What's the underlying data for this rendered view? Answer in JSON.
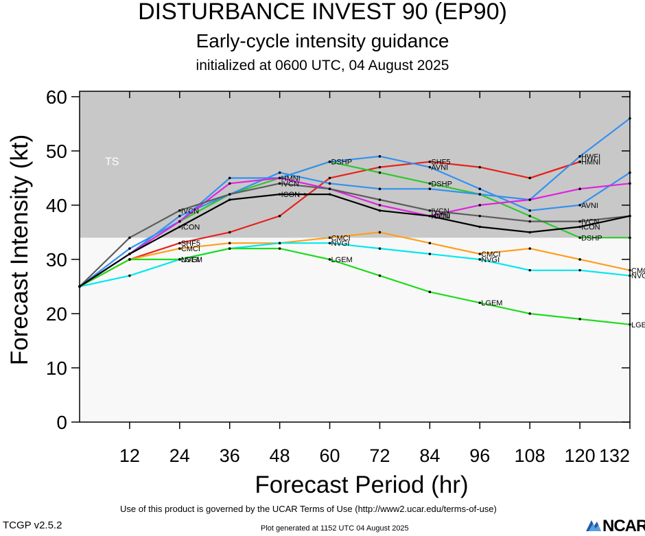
{
  "header": {
    "title": "DISTURBANCE INVEST 90 (EP90)",
    "subtitle": "Early-cycle intensity guidance",
    "init": "initialized at 0600 UTC, 04 August 2025"
  },
  "footer": {
    "terms": "Use of this product is governed by the UCAR Terms of Use (http://www2.ucar.edu/terms-of-use)",
    "version": "TCGP v2.5.2",
    "generated": "Plot generated at 1152 UTC   04 August 2025",
    "logo": "NCAR"
  },
  "colors": {
    "ts_band": "#c8c8c8",
    "below_band": "#f8f8f8"
  },
  "chart_data": {
    "type": "line",
    "xlabel": "Forecast Period (hr)",
    "ylabel": "Forecast Intensity (kt)",
    "xlim": [
      0,
      132
    ],
    "ylim": [
      0,
      61
    ],
    "xticks": [
      12,
      24,
      36,
      48,
      60,
      72,
      84,
      96,
      108,
      120,
      132
    ],
    "yticks": [
      0,
      10,
      20,
      30,
      40,
      50,
      60
    ],
    "band": {
      "label": "TS",
      "from": 34,
      "to": 61
    },
    "series": [
      {
        "name": "SHF5",
        "color": "#e8211c",
        "labels_at": [
          24,
          84
        ],
        "points": [
          [
            0,
            25
          ],
          [
            12,
            30
          ],
          [
            24,
            33
          ],
          [
            36,
            35
          ],
          [
            48,
            38
          ],
          [
            60,
            45
          ],
          [
            72,
            47
          ],
          [
            84,
            48
          ],
          [
            96,
            47
          ],
          [
            108,
            45
          ],
          [
            120,
            48
          ]
        ]
      },
      {
        "name": "HMNI",
        "color": "#e8211c",
        "labels_at": [
          120
        ],
        "points": [
          [
            108,
            45
          ],
          [
            120,
            48
          ]
        ]
      },
      {
        "name": "CMCI",
        "color": "#ff9f1a",
        "labels_at": [
          24,
          60,
          96,
          132
        ],
        "points": [
          [
            0,
            25
          ],
          [
            12,
            30
          ],
          [
            24,
            32
          ],
          [
            36,
            33
          ],
          [
            48,
            33
          ],
          [
            60,
            34
          ],
          [
            72,
            35
          ],
          [
            84,
            33
          ],
          [
            96,
            31
          ],
          [
            108,
            32
          ],
          [
            120,
            30
          ],
          [
            132,
            28
          ]
        ]
      },
      {
        "name": "NVGI",
        "color": "#00e8ee",
        "labels_at": [
          24,
          60,
          96,
          132
        ],
        "points": [
          [
            0,
            25
          ],
          [
            12,
            27
          ],
          [
            24,
            30
          ],
          [
            36,
            32
          ],
          [
            48,
            33
          ],
          [
            60,
            33
          ],
          [
            72,
            32
          ],
          [
            84,
            31
          ],
          [
            96,
            30
          ],
          [
            108,
            28
          ],
          [
            120,
            28
          ],
          [
            132,
            27
          ]
        ]
      },
      {
        "name": "LGEM",
        "color": "#1edc1e",
        "labels_at": [
          24,
          60,
          96,
          132
        ],
        "points": [
          [
            0,
            25
          ],
          [
            12,
            30
          ],
          [
            24,
            30
          ],
          [
            36,
            32
          ],
          [
            48,
            32
          ],
          [
            60,
            30
          ],
          [
            72,
            27
          ],
          [
            84,
            24
          ],
          [
            96,
            22
          ],
          [
            108,
            20
          ],
          [
            120,
            19
          ],
          [
            132,
            18
          ]
        ]
      },
      {
        "name": "DSHP",
        "color": "#2cc82c",
        "labels_at": [
          60,
          84,
          120
        ],
        "points": [
          [
            0,
            25
          ],
          [
            12,
            31
          ],
          [
            24,
            37
          ],
          [
            36,
            42
          ],
          [
            48,
            45
          ],
          [
            60,
            48
          ],
          [
            72,
            46
          ],
          [
            84,
            44
          ],
          [
            96,
            42
          ],
          [
            108,
            38
          ],
          [
            120,
            34
          ],
          [
            132,
            34
          ]
        ]
      },
      {
        "name": "AVNI",
        "color": "#3391f0",
        "labels_at": [
          84,
          120
        ],
        "points": [
          [
            0,
            25
          ],
          [
            12,
            32
          ],
          [
            24,
            37
          ],
          [
            36,
            45
          ],
          [
            48,
            45
          ],
          [
            60,
            48
          ],
          [
            72,
            49
          ],
          [
            84,
            47
          ],
          [
            96,
            43
          ],
          [
            108,
            39
          ],
          [
            120,
            40
          ],
          [
            132,
            46
          ]
        ]
      },
      {
        "name": "HWFI",
        "color": "#3391f0",
        "labels_at": [
          120
        ],
        "points": [
          [
            0,
            25
          ],
          [
            12,
            31
          ],
          [
            24,
            38
          ],
          [
            36,
            42
          ],
          [
            48,
            46
          ],
          [
            60,
            44
          ],
          [
            72,
            43
          ],
          [
            84,
            43
          ],
          [
            96,
            42
          ],
          [
            108,
            41
          ],
          [
            120,
            49
          ],
          [
            132,
            56
          ]
        ]
      },
      {
        "name": "HMNI",
        "color": "#e021e0",
        "labels_at": [
          48,
          84
        ],
        "points": [
          [
            0,
            25
          ],
          [
            12,
            31
          ],
          [
            24,
            37
          ],
          [
            36,
            44
          ],
          [
            48,
            45
          ],
          [
            60,
            43
          ],
          [
            72,
            40
          ],
          [
            84,
            38
          ],
          [
            96,
            40
          ],
          [
            108,
            41
          ],
          [
            120,
            43
          ],
          [
            132,
            44
          ]
        ]
      },
      {
        "name": "IVCN",
        "color": "#5c5c5c",
        "labels_at": [
          24,
          48,
          84,
          120
        ],
        "points": [
          [
            0,
            25
          ],
          [
            12,
            34
          ],
          [
            24,
            39
          ],
          [
            36,
            42
          ],
          [
            48,
            44
          ],
          [
            60,
            43
          ],
          [
            72,
            41
          ],
          [
            84,
            39
          ],
          [
            96,
            38
          ],
          [
            108,
            37
          ],
          [
            120,
            37
          ],
          [
            132,
            38
          ]
        ]
      },
      {
        "name": "ICON",
        "color": "#000000",
        "labels_at": [
          24,
          48,
          84,
          120
        ],
        "points": [
          [
            0,
            25
          ],
          [
            12,
            31
          ],
          [
            24,
            36
          ],
          [
            36,
            41
          ],
          [
            48,
            42
          ],
          [
            54,
            42
          ],
          [
            60,
            42
          ],
          [
            72,
            39
          ],
          [
            84,
            38
          ],
          [
            96,
            36
          ],
          [
            108,
            35
          ],
          [
            120,
            36
          ],
          [
            132,
            38
          ]
        ]
      }
    ]
  }
}
